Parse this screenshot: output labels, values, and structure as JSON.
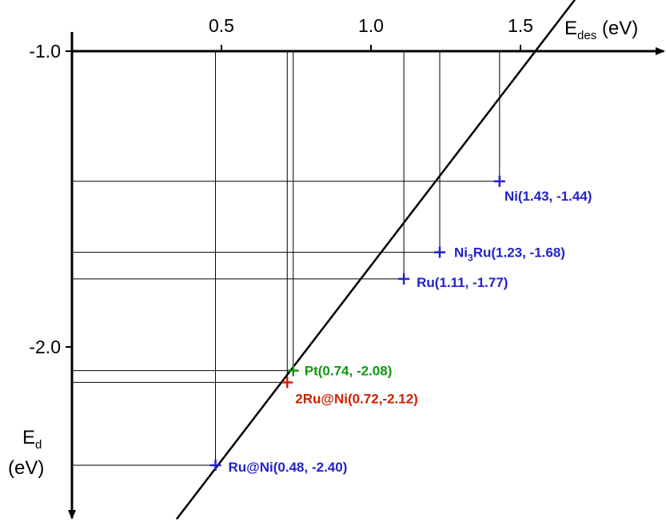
{
  "chart_data": {
    "type": "scatter",
    "x_axis": {
      "label_main": "E",
      "label_sub": "des",
      "label_unit": " (eV)",
      "ticks": [
        {
          "value": 0.5,
          "label": "0.5"
        },
        {
          "value": 1.0,
          "label": "1.0"
        },
        {
          "value": 1.5,
          "label": "1.5"
        }
      ],
      "range": [
        0.0,
        1.95
      ]
    },
    "y_axis": {
      "label_main": "E",
      "label_sub": "d",
      "label_unit": "(eV)",
      "ticks": [
        {
          "value": -1.0,
          "label": "-1.0"
        },
        {
          "value": -2.0,
          "label": "-2.0"
        }
      ],
      "range": [
        -2.55,
        -1.0
      ]
    },
    "points": [
      {
        "name": "Ni",
        "text": "Ni(1.43, -1.44)",
        "x": 1.43,
        "y": -1.44,
        "color": "#2222cc"
      },
      {
        "name": "Ni3Ru",
        "text_pre": "Ni",
        "text_sub": "3",
        "text_post": "Ru(1.23, -1.68)",
        "x": 1.23,
        "y": -1.68,
        "color": "#2222cc"
      },
      {
        "name": "Ru",
        "text": "Ru(1.11, -1.77)",
        "x": 1.11,
        "y": -1.77,
        "color": "#2222cc"
      },
      {
        "name": "Pt",
        "text": "Pt(0.74, -2.08)",
        "x": 0.74,
        "y": -2.08,
        "color": "#119911"
      },
      {
        "name": "2Ru@Ni",
        "text": "2Ru@Ni(0.72,-2.12)",
        "x": 0.72,
        "y": -2.12,
        "color": "#cc2200"
      },
      {
        "name": "Ru@Ni",
        "text": "Ru@Ni(0.48, -2.40)",
        "x": 0.48,
        "y": -2.4,
        "color": "#2222cc"
      }
    ],
    "fit_line": {
      "x_start": 0.35,
      "x_end": 1.69
    },
    "legend": "none",
    "grid": false
  }
}
